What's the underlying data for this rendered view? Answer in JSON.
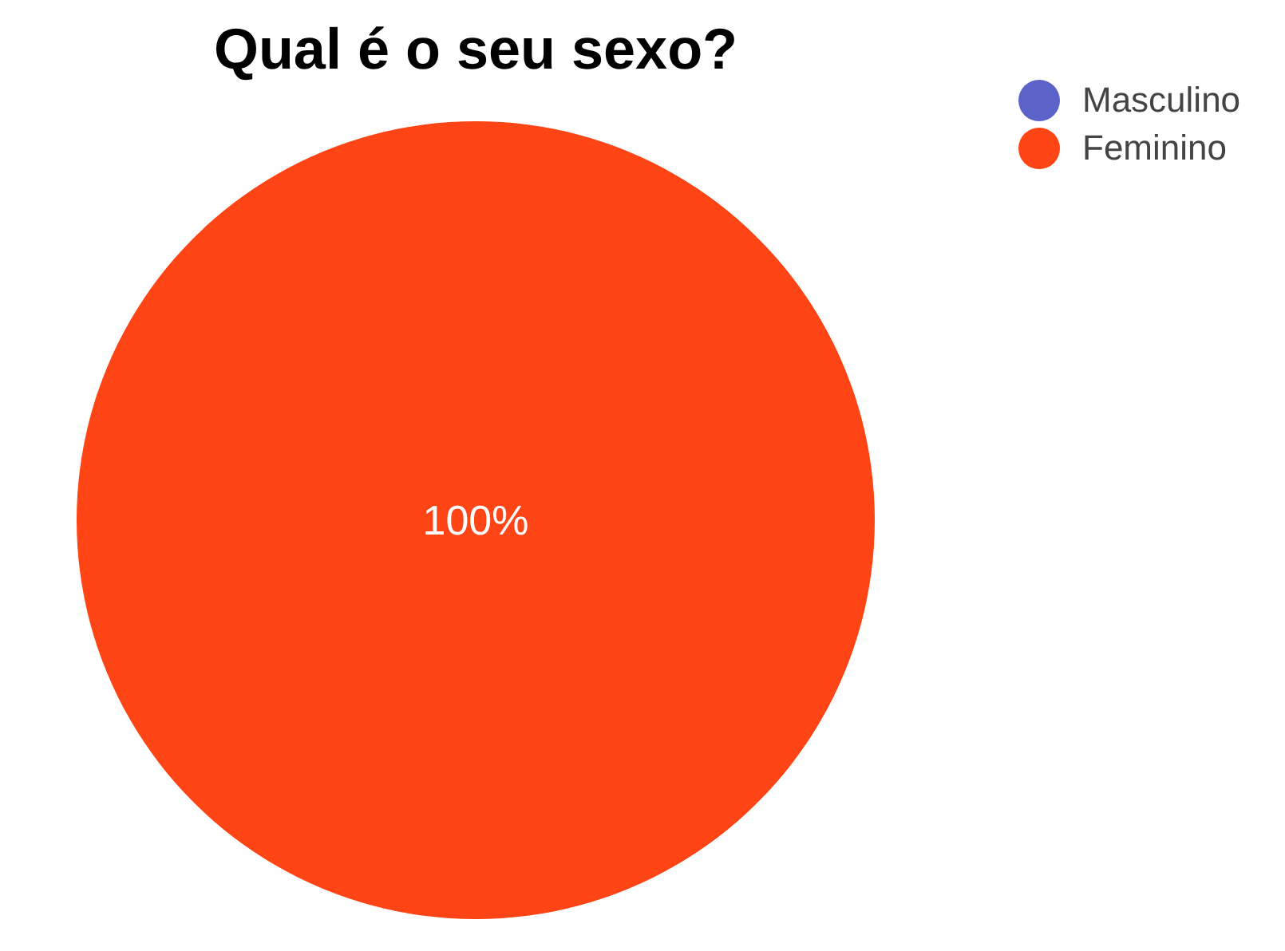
{
  "chart_data": {
    "type": "pie",
    "title": "Qual é o seu sexo?",
    "categories": [
      "Masculino",
      "Feminino"
    ],
    "values": [
      0,
      100
    ],
    "colors": [
      "#5b62c8",
      "#ff4515"
    ],
    "value_labels": [
      null,
      "100%"
    ],
    "legend": "top right"
  }
}
